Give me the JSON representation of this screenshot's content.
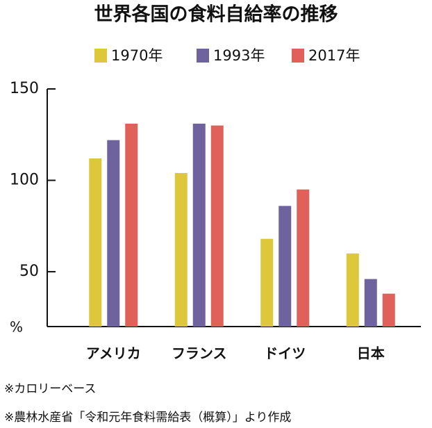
{
  "chart_data": {
    "type": "bar",
    "title": "世界各国の食料自給率の推移",
    "categories": [
      "アメリカ",
      "フランス",
      "ドイツ",
      "日本"
    ],
    "series": [
      {
        "name": "1970年",
        "color": "#dcc83a",
        "values": [
          112,
          104,
          68,
          60
        ]
      },
      {
        "name": "1993年",
        "color": "#6f639e",
        "values": [
          122,
          131,
          86,
          46
        ]
      },
      {
        "name": "2017年",
        "color": "#e0605a",
        "values": [
          131,
          130,
          95,
          38
        ]
      }
    ],
    "ylim": [
      20,
      150
    ],
    "yticks": [
      50,
      100,
      150
    ],
    "y_unit": "%",
    "notes": [
      "※カロリーベース",
      "※農林水産省「令和元年食料需給表（概算）」より作成"
    ]
  }
}
